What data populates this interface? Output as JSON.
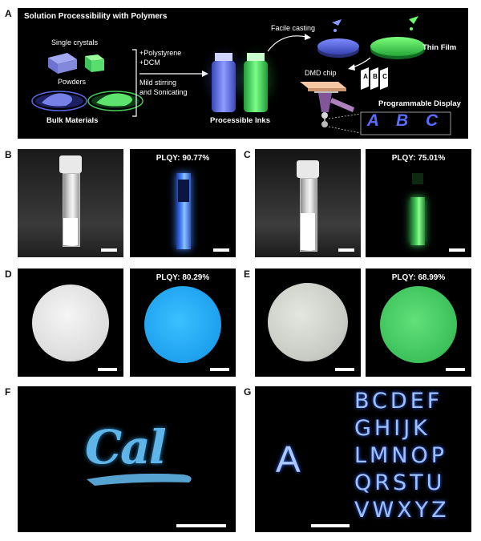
{
  "panel_a": {
    "label": "A",
    "title": "Solution Processibility with Polymers",
    "single_crystals": "Single crystals",
    "powders": "Powders",
    "bulk_materials": "Bulk Materials",
    "polystyrene": "+Polystyrene",
    "dcm": "+DCM",
    "mild_stirring": "Mild stirring",
    "sonicating": "and Sonicating",
    "processible_inks": "Processible Inks",
    "facile_casting": "Facile casting",
    "thin_film": "Thin Film",
    "dmd_chip": "DMD chip",
    "programmable_display": "Programmable Display",
    "card_letters": [
      "A",
      "B",
      "C"
    ],
    "display_letters": "A B C"
  },
  "panel_b": {
    "label": "B",
    "plqy": "PLQY: 90.77%"
  },
  "panel_c": {
    "label": "C",
    "plqy": "PLQY: 75.01%"
  },
  "panel_d": {
    "label": "D",
    "plqy": "PLQY: 80.29%"
  },
  "panel_e": {
    "label": "E",
    "plqy": "PLQY: 68.99%"
  },
  "panel_f": {
    "label": "F",
    "text": "Cal"
  },
  "panel_g": {
    "label": "G",
    "big_letter": "A",
    "rows": [
      "BCDEF",
      "GHIJK",
      "LMNOP",
      "QRSTU",
      "VWXYZ"
    ]
  },
  "colors": {
    "blue_emission": "#5aa6ff",
    "green_emission": "#45d66a",
    "cyan_emission": "#2aa8e8",
    "lavender_crystal": "#8a8fe0"
  }
}
